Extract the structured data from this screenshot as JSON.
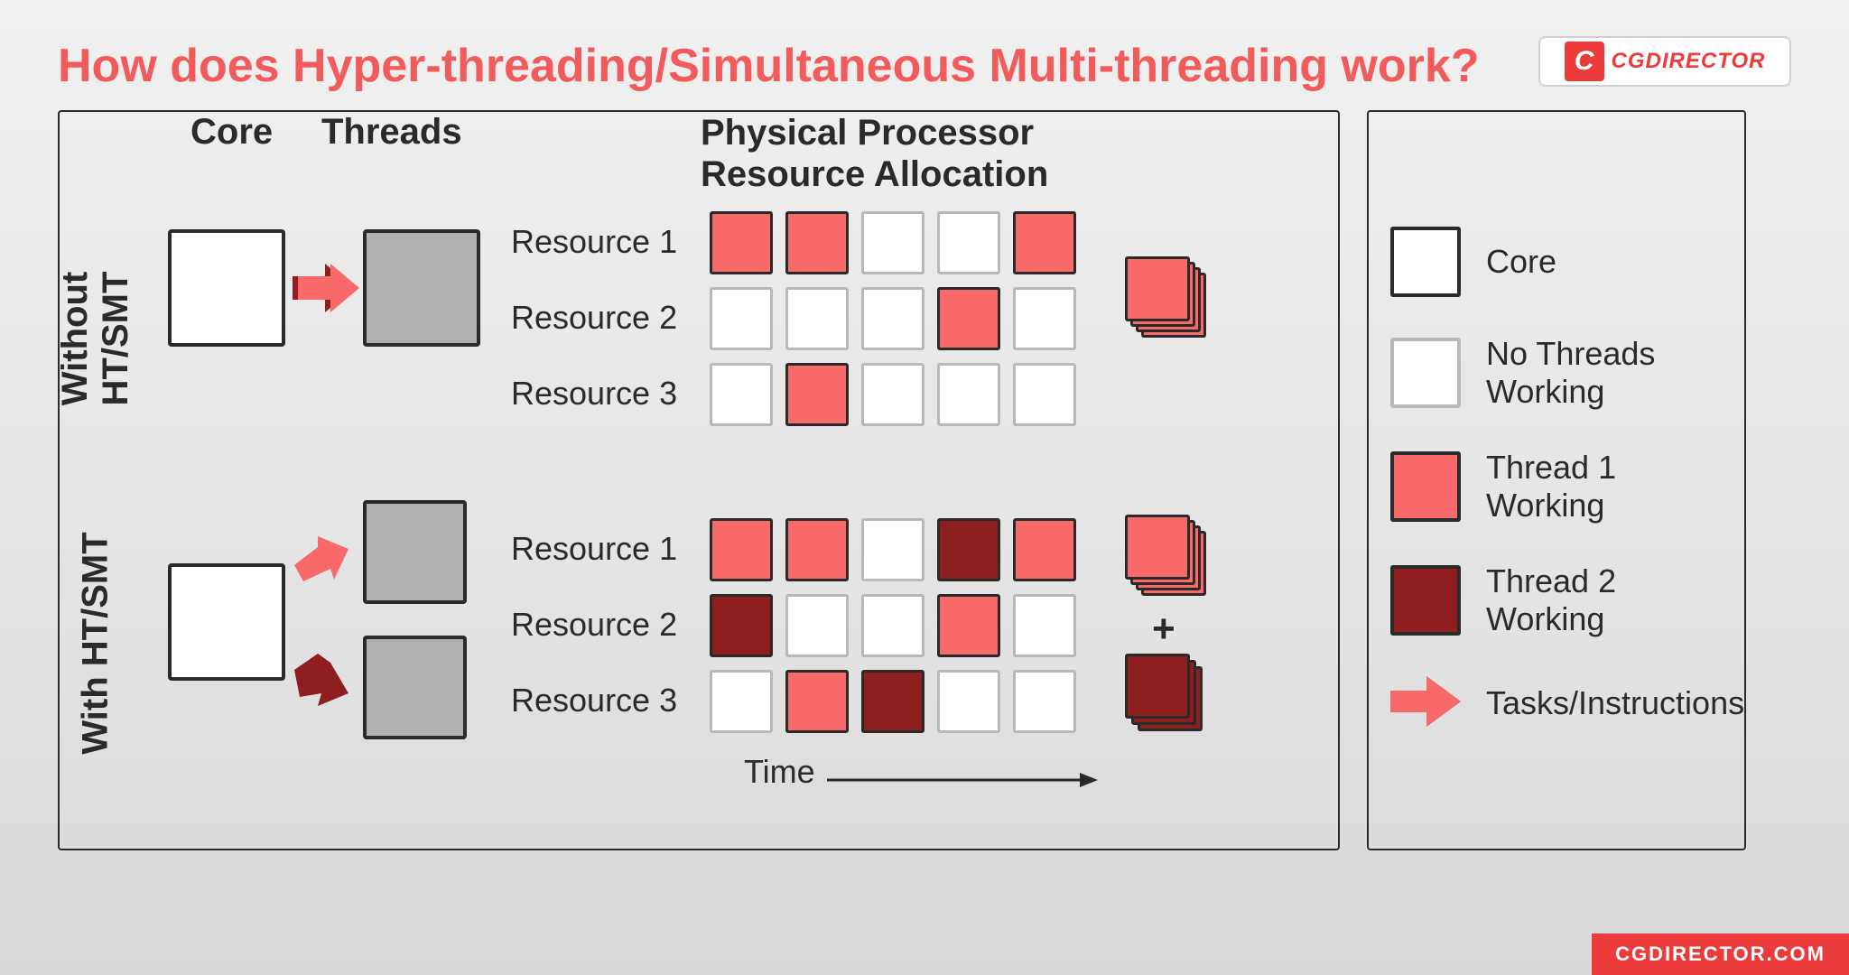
{
  "colors": {
    "accent": "#f15b5b",
    "thread1": "#f86a6a",
    "thread2": "#8f1e1e",
    "none": "#ffffff",
    "core": "#ffffff",
    "threadBox": "#b0b0b0",
    "border": "#2a2a2a",
    "bg": "#eaeaea"
  },
  "title": "How does Hyper-threading/Simultaneous Multi-threading work?",
  "logo": {
    "mark": "C",
    "pre": "CG",
    "rest": "DIRECTOR"
  },
  "footer": "CGDIRECTOR.COM",
  "headers": {
    "core": "Core",
    "threads": "Threads",
    "allocation": "Physical Processor\nResource Allocation"
  },
  "labels": {
    "without": "Without HT/SMT",
    "with": "With HT/SMT",
    "time": "Time"
  },
  "resources": [
    "Resource 1",
    "Resource 2",
    "Resource 3"
  ],
  "grid_without": [
    [
      "t1",
      "t1",
      "none",
      "none",
      "t1"
    ],
    [
      "none",
      "none",
      "none",
      "t1",
      "none"
    ],
    [
      "none",
      "t1",
      "none",
      "none",
      "none"
    ]
  ],
  "grid_with": [
    [
      "t1",
      "t1",
      "none",
      "t2",
      "t1"
    ],
    [
      "t2",
      "none",
      "none",
      "t1",
      "none"
    ],
    [
      "none",
      "t1",
      "t2",
      "none",
      "none"
    ]
  ],
  "legend": {
    "core": "Core",
    "none": "No Threads Working",
    "t1": "Thread 1 Working",
    "t2": "Thread 2 Working",
    "tasks": "Tasks/Instructions"
  }
}
